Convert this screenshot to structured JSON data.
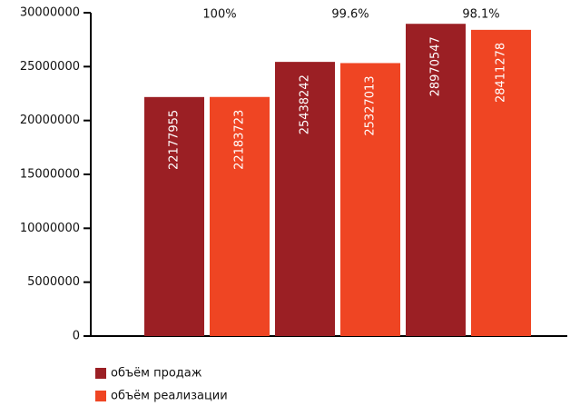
{
  "chart_data": {
    "type": "bar",
    "categories": [
      null,
      null,
      null
    ],
    "series": [
      {
        "name": "объём продаж",
        "color": "#9b1f24",
        "values": [
          22177955,
          25438242,
          28970547
        ]
      },
      {
        "name": "объём реализации",
        "color": "#ef4523",
        "values": [
          22183723,
          25327013,
          28411278
        ]
      }
    ],
    "annotations": [
      "100%",
      "99.6%",
      "98.1%"
    ],
    "ylim": [
      0,
      30000000
    ],
    "yticks": [
      0,
      5000000,
      10000000,
      15000000,
      20000000,
      25000000,
      30000000
    ],
    "grid": false,
    "legend": "bottom-left"
  }
}
